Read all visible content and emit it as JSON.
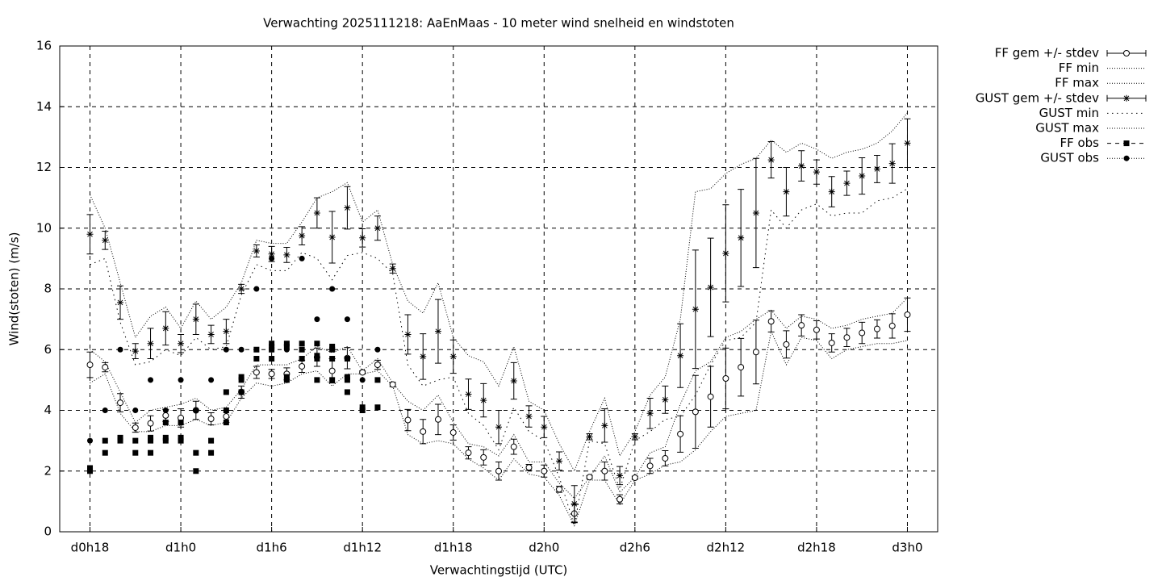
{
  "chart_data": {
    "type": "line",
    "title": "Verwachting 2025111218: AaEnMaas - 10 meter wind snelheid en windstoten",
    "x_label": "Verwachtingstijd (UTC)",
    "y_label": "Wind(stoten) (m/s)",
    "xlim": [
      16,
      74
    ],
    "xticks": [
      {
        "value": 18,
        "label": "d0h18"
      },
      {
        "value": 24,
        "label": "d1h0"
      },
      {
        "value": 30,
        "label": "d1h6"
      },
      {
        "value": 36,
        "label": "d1h12"
      },
      {
        "value": 42,
        "label": "d1h18"
      },
      {
        "value": 48,
        "label": "d2h0"
      },
      {
        "value": 54,
        "label": "d2h6"
      },
      {
        "value": 60,
        "label": "d2h12"
      },
      {
        "value": 66,
        "label": "d2h18"
      },
      {
        "value": 72,
        "label": "d3h0"
      }
    ],
    "ylim": [
      0,
      16
    ],
    "yticks": [
      0,
      2,
      4,
      6,
      8,
      10,
      12,
      14,
      16
    ],
    "grid": true,
    "legend": "outside-right",
    "x": [
      18,
      19,
      20,
      21,
      22,
      23,
      24,
      25,
      26,
      27,
      28,
      29,
      30,
      31,
      32,
      33,
      34,
      35,
      36,
      37,
      38,
      39,
      40,
      41,
      42,
      43,
      44,
      45,
      46,
      47,
      48,
      49,
      50,
      51,
      52,
      53,
      54,
      55,
      56,
      57,
      58,
      59,
      60,
      61,
      62,
      63,
      64,
      65,
      66,
      67,
      68,
      69,
      70,
      71,
      72
    ],
    "series": [
      {
        "name": "FF gem +/- stdev",
        "color": "#000000",
        "marker": "circle",
        "values": [
          5.5,
          5.42,
          4.25,
          3.43,
          3.57,
          3.83,
          3.75,
          4.0,
          3.72,
          3.8,
          4.6,
          5.25,
          5.2,
          5.2,
          5.45,
          5.75,
          5.3,
          5.72,
          5.25,
          5.5,
          4.85,
          3.68,
          3.3,
          3.7,
          3.27,
          2.6,
          2.45,
          2.0,
          2.8,
          2.12,
          2.0,
          1.4,
          0.6,
          1.8,
          2.0,
          1.07,
          1.78,
          2.17,
          2.42,
          3.22,
          3.95,
          4.45,
          5.05,
          5.42,
          5.92,
          6.93,
          6.17,
          6.8,
          6.65,
          6.22,
          6.4,
          6.55,
          6.68,
          6.78,
          7.15
        ],
        "errors": [
          0.42,
          0.15,
          0.3,
          0.15,
          0.25,
          0.2,
          0.3,
          0.3,
          0.2,
          0.2,
          0.2,
          0.2,
          0.15,
          0.2,
          0.2,
          0.3,
          0.4,
          0.35,
          0.05,
          0.15,
          0.07,
          0.35,
          0.4,
          0.5,
          0.25,
          0.2,
          0.25,
          0.3,
          0.25,
          0.1,
          0.2,
          0.1,
          0.3,
          0.05,
          0.3,
          0.15,
          0.05,
          0.25,
          0.25,
          0.6,
          1.2,
          1.0,
          1.0,
          0.95,
          1.05,
          0.35,
          0.45,
          0.35,
          0.3,
          0.3,
          0.3,
          0.35,
          0.3,
          0.4,
          0.55
        ]
      },
      {
        "name": "FF min",
        "color": "#000000",
        "line": "dotted",
        "values": [
          4.9,
          5.2,
          3.9,
          3.3,
          3.3,
          3.5,
          3.5,
          3.7,
          3.5,
          3.6,
          4.4,
          4.9,
          4.8,
          4.9,
          5.2,
          5.3,
          4.8,
          5.2,
          5.2,
          5.3,
          4.8,
          3.2,
          2.9,
          3.0,
          2.9,
          2.4,
          2.1,
          1.7,
          2.4,
          1.9,
          1.8,
          1.2,
          0.2,
          1.7,
          1.7,
          0.9,
          1.7,
          1.9,
          2.2,
          2.3,
          2.7,
          3.3,
          3.8,
          3.9,
          4.0,
          6.6,
          5.5,
          6.4,
          6.3,
          5.7,
          6.0,
          6.1,
          6.2,
          6.2,
          6.3
        ]
      },
      {
        "name": "FF max",
        "color": "#000000",
        "line": "dotted",
        "values": [
          6.0,
          5.6,
          4.6,
          3.6,
          4.0,
          4.1,
          4.2,
          4.4,
          4.0,
          4.1,
          4.7,
          5.5,
          5.5,
          5.5,
          5.7,
          6.1,
          5.9,
          6.1,
          5.3,
          5.7,
          4.9,
          4.3,
          4.0,
          4.5,
          3.6,
          2.9,
          2.8,
          2.5,
          3.2,
          2.3,
          2.3,
          1.6,
          1.1,
          1.8,
          2.5,
          1.3,
          1.8,
          2.6,
          2.8,
          4.2,
          5.3,
          5.6,
          6.4,
          6.6,
          7.0,
          7.3,
          6.7,
          7.1,
          7.0,
          6.7,
          6.8,
          7.0,
          7.1,
          7.2,
          7.7
        ]
      },
      {
        "name": "GUST gem +/- stdev",
        "color": "#000000",
        "marker": "star",
        "values": [
          9.8,
          9.6,
          7.55,
          5.95,
          6.2,
          6.7,
          6.2,
          7.0,
          6.5,
          6.6,
          8.0,
          9.25,
          9.15,
          9.12,
          9.75,
          10.5,
          9.7,
          10.67,
          9.68,
          10.0,
          8.67,
          6.5,
          5.77,
          6.6,
          5.77,
          4.53,
          4.33,
          3.45,
          4.97,
          3.8,
          3.45,
          2.33,
          0.92,
          3.13,
          3.5,
          1.85,
          3.13,
          3.9,
          4.35,
          5.8,
          7.33,
          8.05,
          9.17,
          9.68,
          10.5,
          12.25,
          11.2,
          12.05,
          11.85,
          11.2,
          11.48,
          11.72,
          11.95,
          12.13,
          12.8
        ],
        "errors": [
          0.65,
          0.3,
          0.55,
          0.25,
          0.5,
          0.55,
          0.3,
          0.5,
          0.3,
          0.4,
          0.15,
          0.2,
          0.25,
          0.25,
          0.3,
          0.5,
          0.85,
          0.7,
          0.3,
          0.4,
          0.15,
          0.65,
          0.75,
          1.05,
          0.55,
          0.5,
          0.55,
          0.55,
          0.6,
          0.35,
          0.35,
          0.3,
          0.6,
          0.1,
          0.55,
          0.3,
          0.1,
          0.5,
          0.45,
          1.05,
          1.95,
          1.62,
          1.6,
          1.6,
          1.8,
          0.6,
          0.8,
          0.5,
          0.4,
          0.5,
          0.4,
          0.6,
          0.45,
          0.65,
          0.8
        ]
      },
      {
        "name": "GUST min",
        "color": "#000000",
        "line": "sparse-dotted",
        "values": [
          8.8,
          9.0,
          6.9,
          5.5,
          5.6,
          6.0,
          5.8,
          6.4,
          6.0,
          6.1,
          7.8,
          8.8,
          8.6,
          8.6,
          9.2,
          9.0,
          8.3,
          9.1,
          9.2,
          9.0,
          8.5,
          5.5,
          4.8,
          5.0,
          5.1,
          3.9,
          3.5,
          2.7,
          4.1,
          3.3,
          3.0,
          1.8,
          0.2,
          3.0,
          2.9,
          1.4,
          3.0,
          3.3,
          3.7,
          3.8,
          4.5,
          5.5,
          6.3,
          6.4,
          6.9,
          10.6,
          10.0,
          10.6,
          10.8,
          10.4,
          10.5,
          10.5,
          10.9,
          11.0,
          11.3
        ]
      },
      {
        "name": "GUST max",
        "color": "#000000",
        "line": "dotted",
        "values": [
          11.1,
          10.0,
          8.2,
          6.4,
          7.1,
          7.4,
          6.7,
          7.6,
          7.0,
          7.4,
          8.2,
          9.6,
          9.5,
          9.5,
          10.2,
          11.0,
          11.2,
          11.5,
          10.2,
          10.6,
          8.8,
          7.6,
          7.2,
          8.2,
          6.4,
          5.8,
          5.6,
          4.8,
          6.1,
          4.3,
          4.0,
          2.9,
          2.0,
          3.3,
          4.4,
          2.5,
          3.3,
          4.5,
          5.1,
          7.0,
          11.2,
          11.3,
          11.8,
          12.1,
          12.3,
          12.9,
          12.5,
          12.8,
          12.6,
          12.3,
          12.5,
          12.6,
          12.8,
          13.2,
          13.8
        ]
      },
      {
        "name": "FF obs",
        "color": "#000000",
        "marker": "square",
        "x": [
          18,
          18,
          19,
          19,
          20,
          20,
          21,
          21,
          22,
          22,
          22,
          23,
          23,
          23,
          24,
          24,
          24,
          25,
          25,
          26,
          26,
          27,
          27,
          27,
          28,
          28,
          28,
          29,
          29,
          30,
          30,
          30,
          30,
          31,
          31,
          31,
          31,
          32,
          32,
          32,
          33,
          33,
          33,
          33,
          34,
          34,
          34,
          34,
          35,
          35,
          35,
          35,
          36,
          36,
          37,
          37
        ],
        "values": [
          2.0,
          2.1,
          2.6,
          3.0,
          3.0,
          3.1,
          2.6,
          3.0,
          2.6,
          3.0,
          3.1,
          3.0,
          3.1,
          3.6,
          3.0,
          3.1,
          3.6,
          2.0,
          2.6,
          2.6,
          3.0,
          3.6,
          4.0,
          4.6,
          4.6,
          5.0,
          5.1,
          5.7,
          6.0,
          5.7,
          6.0,
          6.1,
          6.2,
          5.0,
          5.1,
          6.1,
          6.2,
          5.7,
          6.0,
          6.2,
          5.0,
          5.7,
          5.8,
          6.2,
          5.0,
          5.7,
          6.0,
          6.1,
          4.6,
          5.0,
          5.1,
          5.7,
          4.0,
          4.1,
          4.1,
          5.0
        ]
      },
      {
        "name": "GUST obs",
        "color": "#000000",
        "marker": "dot",
        "x": [
          18,
          19,
          20,
          21,
          22,
          23,
          24,
          25,
          26,
          27,
          28,
          29,
          30,
          30,
          31,
          32,
          33,
          34,
          35,
          36,
          37
        ],
        "values": [
          3,
          4,
          6,
          4,
          5,
          4,
          5,
          4,
          5,
          6,
          6,
          8,
          9,
          6,
          6,
          9,
          7,
          8,
          7,
          5,
          6
        ]
      }
    ]
  }
}
